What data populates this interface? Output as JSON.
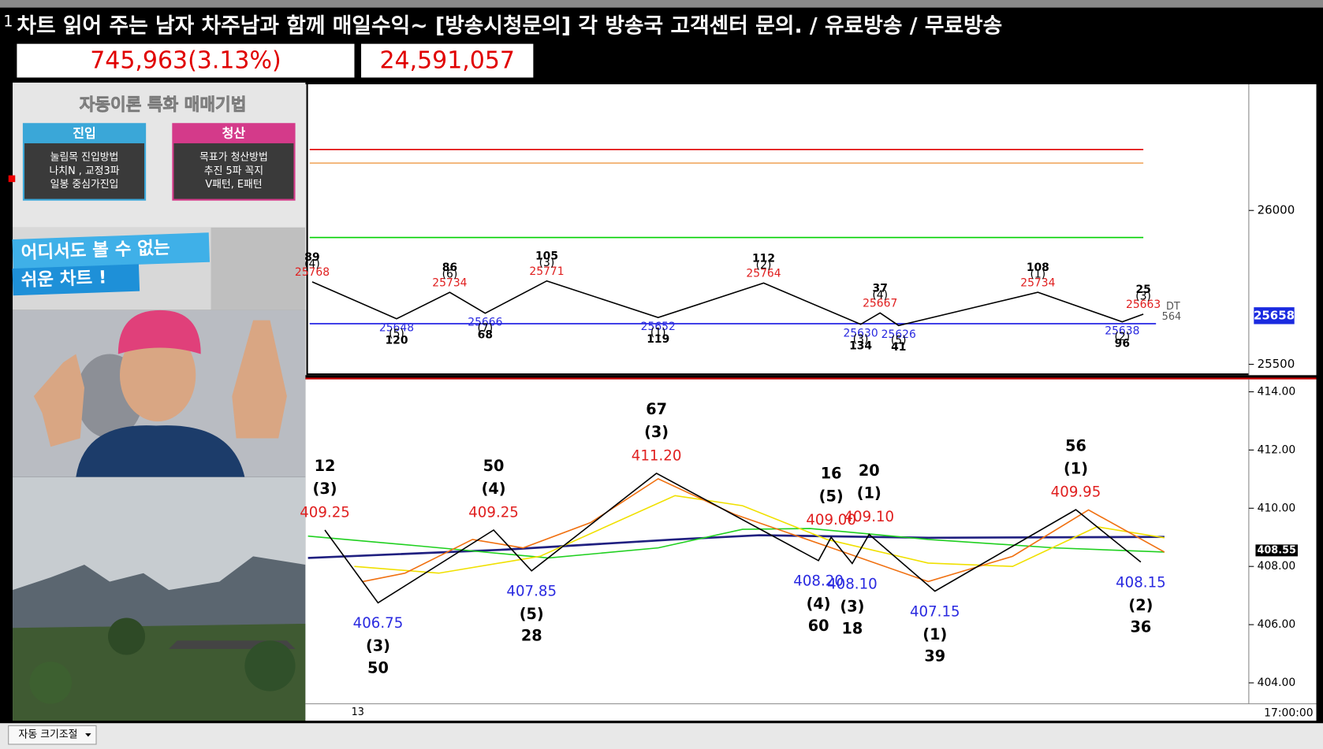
{
  "window": {
    "marker": "1",
    "title": "차트 읽어 주는 남자 차주남과 함께 매일수익~ [방송시청문의] 각 방송국 고객센터 문의. / 유료방송 / 무료방송",
    "counters": [
      "745,963(3.13%)",
      "24,591,057"
    ]
  },
  "promo": {
    "heading": "자동이론 특화 매매기법",
    "entry": {
      "title": "진입",
      "lines": [
        "눌림목 진입방법",
        "나치N , 교정3파",
        "일봉 중심가진입"
      ]
    },
    "exit": {
      "title": "청산",
      "lines": [
        "목표가 청산방법",
        "추진 5파 꼭지",
        "V패턴, E패턴"
      ]
    },
    "banner": [
      "어디서도 볼 수 없는",
      "쉬운 차트 !"
    ]
  },
  "upper_chart": {
    "ylim": [
      25465,
      26410
    ],
    "yticks": [
      26000,
      25500
    ],
    "levels": [
      {
        "value": 26198,
        "color": "#e00000"
      },
      {
        "value": 26154,
        "color": "#f0a860"
      },
      {
        "value": 25912,
        "color": "#00d000"
      },
      {
        "value": 25632,
        "color": "#0000e0"
      }
    ],
    "pivots": [
      {
        "price": 25768,
        "wave": "(4)",
        "count": 89
      },
      {
        "price": 25648,
        "wave": "(5)",
        "count": 120
      },
      {
        "price": 25734,
        "wave": "(6)",
        "count": 86
      },
      {
        "price": 25666,
        "wave": "(7)",
        "count": 68
      },
      {
        "price": 25771,
        "wave": "(3)",
        "count": 105
      },
      {
        "price": 25652,
        "wave": "(1)",
        "count": 119
      },
      {
        "price": 25764,
        "wave": "(2)",
        "count": 112
      },
      {
        "price": 25630,
        "wave": "(3)",
        "count": 134
      },
      {
        "price": 25667,
        "wave": "(4)",
        "count": 37
      },
      {
        "price": 25626,
        "wave": "(5)",
        "count": 41
      },
      {
        "price": 25734,
        "wave": "(1)",
        "count": 108
      },
      {
        "price": 25638,
        "wave": "(2)",
        "count": 96
      },
      {
        "price": 25663,
        "wave": "(3)",
        "count": 25
      }
    ],
    "last_price": 25658,
    "dt_label": "DT",
    "dt_value": 564
  },
  "lower_chart": {
    "ylim": [
      403.28,
      414.43
    ],
    "yticks": [
      {
        "value": 414,
        "label": "414.00"
      },
      {
        "value": 412,
        "label": "412.00"
      },
      {
        "value": 410,
        "label": "410.00"
      },
      {
        "value": 408,
        "label": "408.00"
      },
      {
        "value": 406,
        "label": "406.00"
      },
      {
        "value": 404,
        "label": "404.00"
      }
    ],
    "pivots": [
      {
        "price": 409.25,
        "wave": "(3)",
        "count": 12
      },
      {
        "price": 406.75,
        "wave": "(3)",
        "count": 50
      },
      {
        "price": 409.25,
        "wave": "(4)",
        "count": 50
      },
      {
        "price": 407.85,
        "wave": "(5)",
        "count": 28
      },
      {
        "price": 411.2,
        "price_label": "411.20",
        "wave": "(3)",
        "count": 67
      },
      {
        "price": 408.2,
        "price_label": "408.20",
        "wave": "(4)",
        "count": 60
      },
      {
        "price": 409,
        "price_label": "409.00",
        "wave": "(5)",
        "count": 16
      },
      {
        "price": 408.1,
        "price_label": "408.10",
        "wave": "(3)",
        "count": 18
      },
      {
        "price": 409.1,
        "price_label": "409.10",
        "wave": "(1)",
        "count": 20
      },
      {
        "price": 407.15,
        "wave": "(1)",
        "count": 39
      },
      {
        "price": 409.95,
        "wave": "(1)",
        "count": 56
      },
      {
        "price": 408.15,
        "wave": "(2)",
        "count": 36
      }
    ],
    "last_price": 408.55,
    "x_label": "13",
    "time_label": "17:00:00"
  },
  "toolbar": {
    "button": "자동 크기조절"
  }
}
